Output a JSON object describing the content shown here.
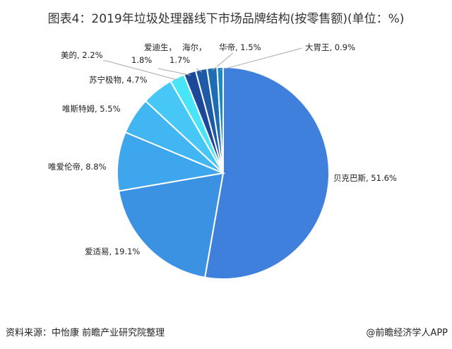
{
  "chart_data": {
    "type": "pie",
    "title": "图表4：2019年垃圾处理器线下市场品牌结构(按零售额)(单位：%)",
    "unit": "%",
    "start": "top, clockwise",
    "slices": [
      {
        "name": "贝克巴斯",
        "value": 51.6,
        "label": "贝克巴斯, 51.6%",
        "color": "#3f80dc"
      },
      {
        "name": "爱适易",
        "value": 19.1,
        "label": "爱适易, 19.1%",
        "color": "#3b92e2"
      },
      {
        "name": "唯爱伦帝",
        "value": 8.8,
        "label": "唯爱伦帝, 8.8%",
        "color": "#3ea6ec"
      },
      {
        "name": "唯斯特姆",
        "value": 5.5,
        "label": "唯斯特姆, 5.5%",
        "color": "#42b6f2"
      },
      {
        "name": "苏宁极物",
        "value": 4.7,
        "label": "苏宁极物, 4.7%",
        "color": "#47c7f6"
      },
      {
        "name": "美的",
        "value": 2.2,
        "label": "美的, 2.2%",
        "color": "#48e4f8"
      },
      {
        "name": "爱迪生",
        "value": 1.8,
        "label": "爱迪生，",
        "label2": "1.8%",
        "color": "#1b4898"
      },
      {
        "name": "海尔",
        "value": 1.7,
        "label": "海尔，",
        "label2": "1.7%",
        "color": "#1f5aa6"
      },
      {
        "name": "华帝",
        "value": 1.5,
        "label": "华帝, 1.5%",
        "color": "#1d6db4"
      },
      {
        "name": "大胃王",
        "value": 0.9,
        "label": "大胃王, 0.9%",
        "color": "#1a88c8"
      }
    ]
  },
  "footer": {
    "source": "资料来源：中怡康 前瞻产业研究院整理",
    "brand": "@前瞻经济学人APP"
  }
}
